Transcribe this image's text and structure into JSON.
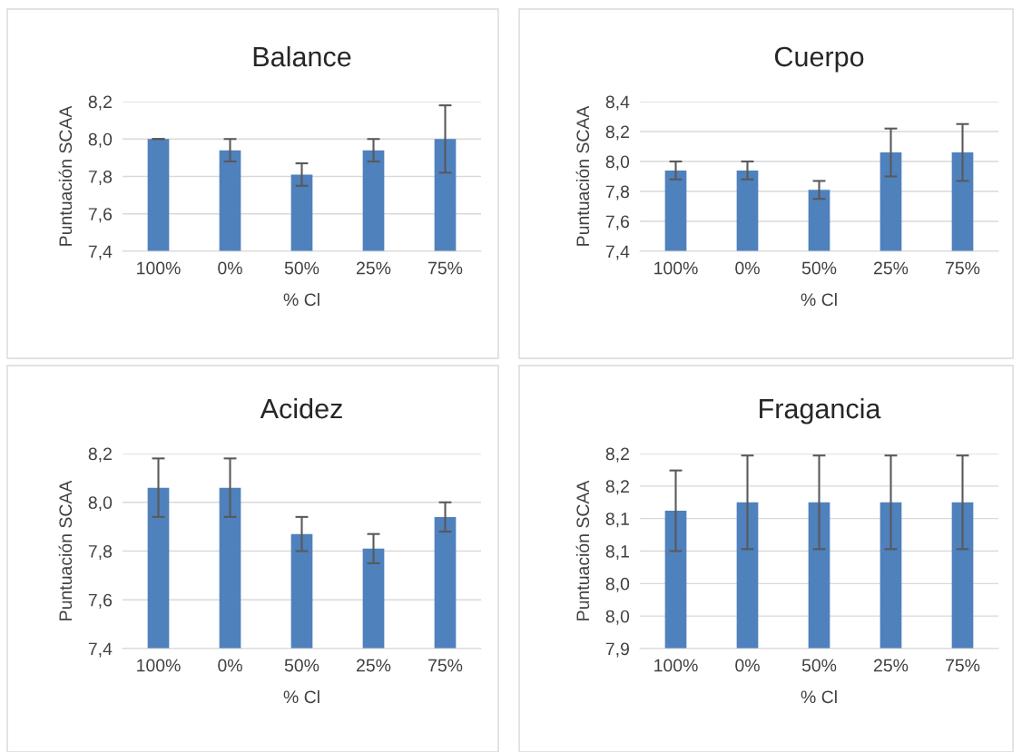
{
  "chart_data": [
    {
      "type": "bar",
      "title": "Balance",
      "xlabel": "% Cl",
      "ylabel": "Puntuación SCAA",
      "categories": [
        "100%",
        "0%",
        "50%",
        "25%",
        "75%"
      ],
      "values": [
        8.0,
        7.94,
        7.81,
        7.94,
        8.0
      ],
      "errors": [
        0,
        0.06,
        0.06,
        0.06,
        0.18
      ],
      "color": "#4f81bd",
      "ylim": [
        7.4,
        8.2
      ],
      "yticks": [
        {
          "value": 7.4,
          "label": "7,4"
        },
        {
          "value": 7.6,
          "label": "7,6"
        },
        {
          "value": 7.8,
          "label": "7,8"
        },
        {
          "value": 8.0,
          "label": "8,0"
        },
        {
          "value": 8.2,
          "label": "8,2"
        }
      ],
      "grid": "y",
      "legend": false
    },
    {
      "type": "bar",
      "title": "Cuerpo",
      "xlabel": "% Cl",
      "ylabel": "Puntuación SCAA",
      "categories": [
        "100%",
        "0%",
        "50%",
        "25%",
        "75%"
      ],
      "values": [
        7.94,
        7.94,
        7.81,
        8.06,
        8.06
      ],
      "errors": [
        0.06,
        0.06,
        0.06,
        0.16,
        0.19
      ],
      "color": "#4f81bd",
      "ylim": [
        7.4,
        8.4
      ],
      "yticks": [
        {
          "value": 7.4,
          "label": "7,4"
        },
        {
          "value": 7.6,
          "label": "7,6"
        },
        {
          "value": 7.8,
          "label": "7,8"
        },
        {
          "value": 8.0,
          "label": "8,0"
        },
        {
          "value": 8.2,
          "label": "8,2"
        },
        {
          "value": 8.4,
          "label": "8,4"
        }
      ],
      "grid": "y",
      "legend": false
    },
    {
      "type": "bar",
      "title": "Acidez",
      "xlabel": "% Cl",
      "ylabel": "Puntuación SCAA",
      "categories": [
        "100%",
        "0%",
        "50%",
        "25%",
        "75%"
      ],
      "values": [
        8.06,
        8.06,
        7.87,
        7.81,
        7.94
      ],
      "errors": [
        0.12,
        0.12,
        0.07,
        0.06,
        0.06
      ],
      "color": "#4f81bd",
      "ylim": [
        7.4,
        8.2
      ],
      "yticks": [
        {
          "value": 7.4,
          "label": "7,4"
        },
        {
          "value": 7.6,
          "label": "7,6"
        },
        {
          "value": 7.8,
          "label": "7,8"
        },
        {
          "value": 8.0,
          "label": "8,0"
        },
        {
          "value": 8.2,
          "label": "8,2"
        }
      ],
      "grid": "y",
      "legend": false
    },
    {
      "type": "bar",
      "title": "Fragancia",
      "xlabel": "% Cl",
      "ylabel": "Puntuación SCAA",
      "categories": [
        "100%",
        "0%",
        "50%",
        "25%",
        "75%"
      ],
      "values": [
        8.112,
        8.125,
        8.125,
        8.125,
        8.125
      ],
      "errors": [
        0.062,
        0.072,
        0.072,
        0.072,
        0.072
      ],
      "color": "#4f81bd",
      "ylim": [
        7.9,
        8.2
      ],
      "yticks": [
        {
          "value": 7.9,
          "label": "7,9"
        },
        {
          "value": 7.95,
          "label": "8,0"
        },
        {
          "value": 8.0,
          "label": "8,0"
        },
        {
          "value": 8.05,
          "label": "8,1"
        },
        {
          "value": 8.1,
          "label": "8,1"
        },
        {
          "value": 8.15,
          "label": "8,2"
        },
        {
          "value": 8.2,
          "label": "8,2"
        }
      ],
      "grid": "y",
      "legend": false
    }
  ]
}
